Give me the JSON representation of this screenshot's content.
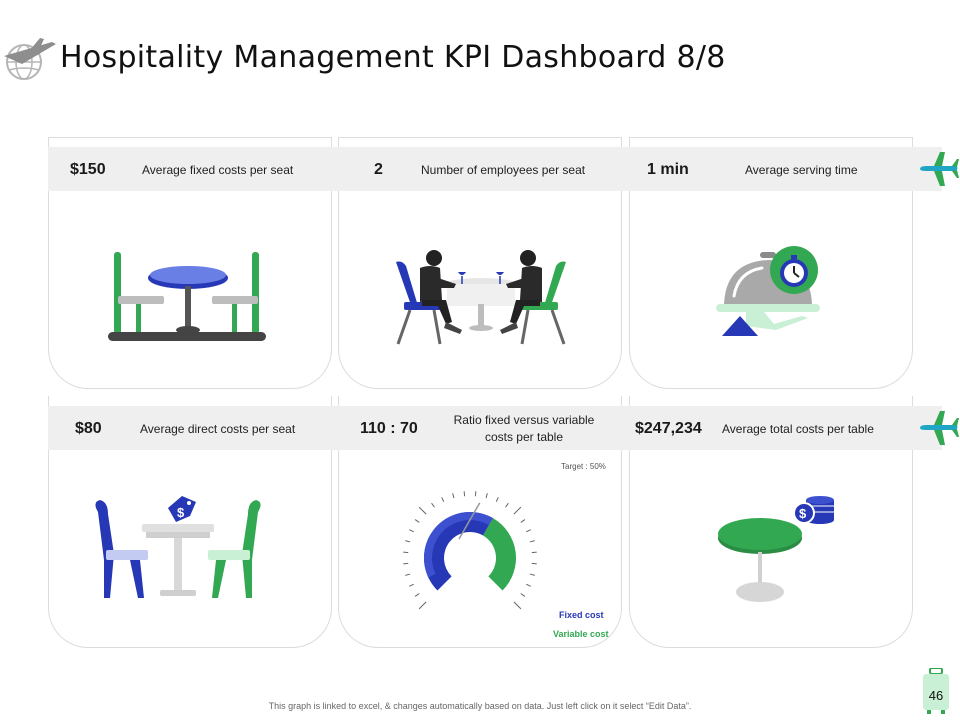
{
  "header": {
    "title": "Hospitality Management KPI Dashboard 8/8",
    "logo_icon": "globe-plane-icon"
  },
  "kpis": [
    {
      "value": "$150",
      "label": "Average fixed costs per seat",
      "icon": "dining-table-chairs-icon"
    },
    {
      "value": "2",
      "label": "Number of employees per seat",
      "icon": "diners-at-table-icon"
    },
    {
      "value": "1 min",
      "label": "Average serving time",
      "icon": "cloche-clock-icon"
    },
    {
      "value": "$80",
      "label": "Average direct costs per seat",
      "icon": "table-price-tag-icon"
    },
    {
      "value": "110 : 70",
      "label": "Ratio fixed versus variable costs per table",
      "icon": "gauge-icon"
    },
    {
      "value": "$247,234",
      "label": "Average total costs per table",
      "icon": "round-table-coins-icon"
    }
  ],
  "gauge": {
    "target_label": "Target : 50%",
    "legend_fixed": "Fixed cost",
    "legend_variable": "Variable cost",
    "fixed_value": 110,
    "variable_value": 70
  },
  "colors": {
    "accent_blue": "#2638b5",
    "accent_green": "#33a852",
    "plane_teal": "#1fa6c4",
    "band_gray": "#efefef"
  },
  "footer": {
    "note": "This graph is linked to excel, & changes automatically based on data. Just left click on it select “Edit Data”.",
    "page_number": "46"
  }
}
